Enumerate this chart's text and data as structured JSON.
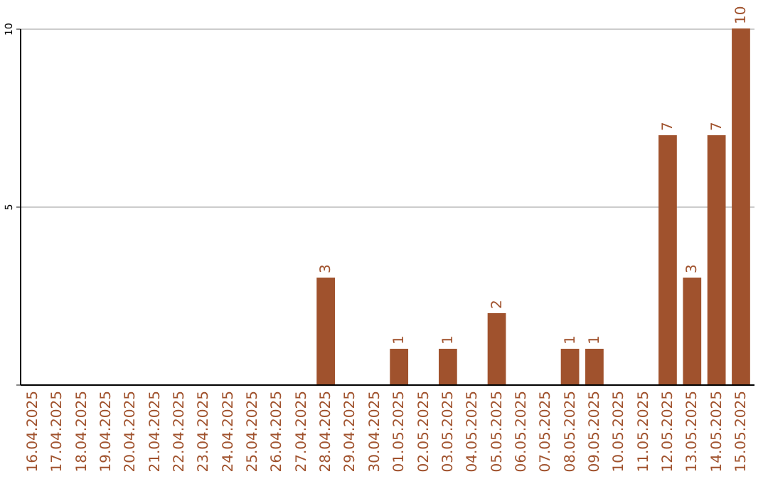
{
  "chart_data": {
    "type": "bar",
    "categories": [
      "16.04.2025",
      "17.04.2025",
      "18.04.2025",
      "19.04.2025",
      "20.04.2025",
      "21.04.2025",
      "22.04.2025",
      "23.04.2025",
      "24.04.2025",
      "25.04.2025",
      "26.04.2025",
      "27.04.2025",
      "28.04.2025",
      "29.04.2025",
      "30.04.2025",
      "01.05.2025",
      "02.05.2025",
      "03.05.2025",
      "04.05.2025",
      "05.05.2025",
      "06.05.2025",
      "07.05.2025",
      "08.05.2025",
      "09.05.2025",
      "10.05.2025",
      "11.05.2025",
      "12.05.2025",
      "13.05.2025",
      "14.05.2025",
      "15.05.2025"
    ],
    "values": [
      0,
      0,
      0,
      0,
      0,
      0,
      0,
      0,
      0,
      0,
      0,
      0,
      3,
      0,
      0,
      1,
      0,
      1,
      0,
      2,
      0,
      0,
      1,
      1,
      0,
      0,
      7,
      3,
      7,
      10
    ],
    "value_labels": [
      null,
      null,
      null,
      null,
      null,
      null,
      null,
      null,
      null,
      null,
      null,
      null,
      "3",
      null,
      null,
      "1",
      null,
      "1",
      null,
      "2",
      null,
      null,
      "1",
      "1",
      null,
      null,
      "7",
      "3",
      "7",
      "10"
    ],
    "color": "#a0522d",
    "ylim": [
      0,
      10
    ],
    "yticks": [
      {
        "value": 0,
        "label": null
      },
      5,
      10
    ],
    "grid": "y"
  }
}
